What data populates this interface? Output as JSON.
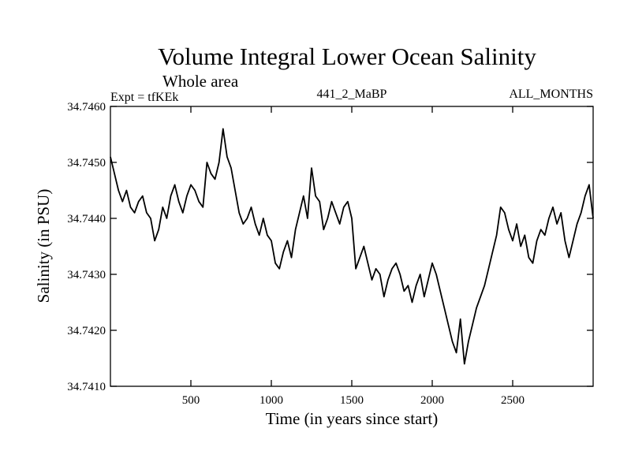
{
  "chart_data": {
    "type": "line",
    "title": "Volume Integral Lower Ocean Salinity",
    "subtitle": "Whole area",
    "left_label": "Expt = tfKEk",
    "center_label": "441_2_MaBP",
    "right_label": "ALL_MONTHS",
    "xlabel": "Time (in years since start)",
    "ylabel": "Salinity (in PSU)",
    "xlim": [
      0,
      3000
    ],
    "ylim": [
      34.741,
      34.746
    ],
    "x_ticks": [
      500,
      1000,
      1500,
      2000,
      2500
    ],
    "x_tick_labels": [
      "500",
      "1000",
      "1500",
      "2000",
      "2500"
    ],
    "y_ticks": [
      34.741,
      34.742,
      34.743,
      34.744,
      34.745,
      34.746
    ],
    "y_tick_labels": [
      "34.7410",
      "34.7420",
      "34.7430",
      "34.7440",
      "34.7450",
      "34.7460"
    ],
    "grid": false,
    "line_color": "#000000",
    "series": [
      {
        "x": [
          0,
          25,
          50,
          75,
          100,
          125,
          150,
          175,
          200,
          225,
          250,
          275,
          300,
          325,
          350,
          375,
          400,
          425,
          450,
          475,
          500,
          525,
          550,
          575,
          600,
          625,
          650,
          675,
          700,
          725,
          750,
          775,
          800,
          825,
          850,
          875,
          900,
          925,
          950,
          975,
          1000,
          1025,
          1050,
          1075,
          1100,
          1125,
          1150,
          1175,
          1200,
          1225,
          1250,
          1275,
          1300,
          1325,
          1350,
          1375,
          1400,
          1425,
          1450,
          1475,
          1500,
          1525,
          1550,
          1575,
          1600,
          1625,
          1650,
          1675,
          1700,
          1725,
          1750,
          1775,
          1800,
          1825,
          1850,
          1875,
          1900,
          1925,
          1950,
          1975,
          2000,
          2025,
          2050,
          2075,
          2100,
          2125,
          2150,
          2175,
          2200,
          2225,
          2250,
          2275,
          2300,
          2325,
          2350,
          2375,
          2400,
          2425,
          2450,
          2475,
          2500,
          2525,
          2550,
          2575,
          2600,
          2625,
          2650,
          2675,
          2700,
          2725,
          2750,
          2775,
          2800,
          2825,
          2850,
          2875,
          2900,
          2925,
          2950,
          2975,
          3000
        ],
        "values": [
          34.7451,
          34.7448,
          34.7445,
          34.7443,
          34.7445,
          34.7442,
          34.7441,
          34.7443,
          34.7444,
          34.7441,
          34.744,
          34.7436,
          34.7438,
          34.7442,
          34.744,
          34.7444,
          34.7446,
          34.7443,
          34.7441,
          34.7444,
          34.7446,
          34.7445,
          34.7443,
          34.7442,
          34.745,
          34.7448,
          34.7447,
          34.745,
          34.7456,
          34.7451,
          34.7449,
          34.7445,
          34.7441,
          34.7439,
          34.744,
          34.7442,
          34.7439,
          34.7437,
          34.744,
          34.7437,
          34.7436,
          34.7432,
          34.7431,
          34.7434,
          34.7436,
          34.7433,
          34.7438,
          34.7441,
          34.7444,
          34.744,
          34.7449,
          34.7444,
          34.7443,
          34.7438,
          34.744,
          34.7443,
          34.7441,
          34.7439,
          34.7442,
          34.7443,
          34.744,
          34.7431,
          34.7433,
          34.7435,
          34.7432,
          34.7429,
          34.7431,
          34.743,
          34.7426,
          34.7429,
          34.7431,
          34.7432,
          34.743,
          34.7427,
          34.7428,
          34.7425,
          34.7428,
          34.743,
          34.7426,
          34.7429,
          34.7432,
          34.743,
          34.7427,
          34.7424,
          34.7421,
          34.7418,
          34.7416,
          34.7422,
          34.7414,
          34.7418,
          34.7421,
          34.7424,
          34.7426,
          34.7428,
          34.7431,
          34.7434,
          34.7437,
          34.7442,
          34.7441,
          34.7438,
          34.7436,
          34.7439,
          34.7435,
          34.7437,
          34.7433,
          34.7432,
          34.7436,
          34.7438,
          34.7437,
          34.744,
          34.7442,
          34.7439,
          34.7441,
          34.7436,
          34.7433,
          34.7436,
          34.7439,
          34.7441,
          34.7444,
          34.7446,
          34.744
        ]
      }
    ]
  }
}
